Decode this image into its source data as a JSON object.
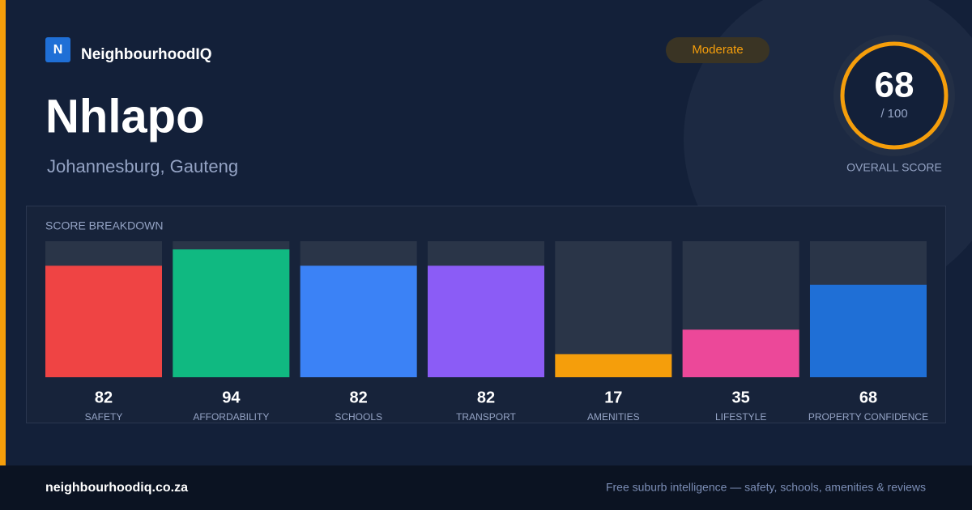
{
  "brand": {
    "logo": "N",
    "name": "NeighbourhoodIQ"
  },
  "badge": "Moderate",
  "title": "Nhlapo",
  "subtitle": "Johannesburg, Gauteng",
  "overall": {
    "score": 68,
    "max": {
      "value": 100,
      "label": "/ 100"
    },
    "label": "OVERALL SCORE"
  },
  "chart_data": {
    "type": "bar",
    "title": "SCORE BREAKDOWN",
    "categories": [
      "SAFETY",
      "AFFORDABILITY",
      "SCHOOLS",
      "TRANSPORT",
      "AMENITIES",
      "LIFESTYLE",
      "PROPERTY CONFIDENCE"
    ],
    "values": [
      82,
      94,
      82,
      82,
      17,
      35,
      68
    ],
    "colors": [
      "#ef4444",
      "#10b981",
      "#3b82f6",
      "#8b5cf6",
      "#f59e0b",
      "#ec4899",
      "#1f6fd6"
    ]
  },
  "footer": {
    "site": "neighbourhoodiq.co.za",
    "tagline": "Free suburb intelligence — safety, schools, amenities & reviews"
  }
}
